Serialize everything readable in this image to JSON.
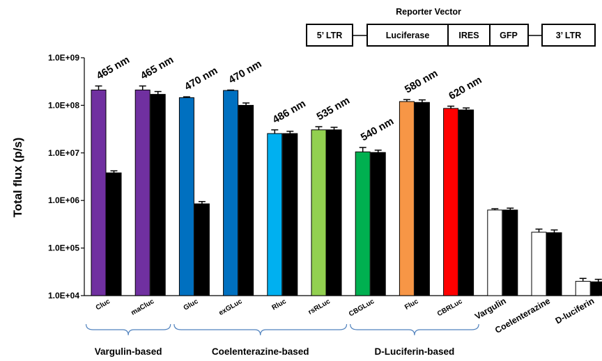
{
  "chart_data": {
    "type": "bar",
    "ylabel": "Total flux (p/s)",
    "xlabel": "",
    "scale": "log",
    "ylim": [
      10000,
      1000000000
    ],
    "yticks": [
      {
        "value": 10000,
        "label": "1.0E+04"
      },
      {
        "value": 100000,
        "label": "1.0E+05"
      },
      {
        "value": 1000000,
        "label": "1.0E+06"
      },
      {
        "value": 10000000,
        "label": "1.0E+07"
      },
      {
        "value": 100000000,
        "label": "1.0E+08"
      },
      {
        "value": 1000000000,
        "label": "1.0E+09"
      }
    ],
    "categories": [
      "Cluc",
      "maCluc",
      "Gluc",
      "exGLuc",
      "Rluc",
      "rsRLuc",
      "CBGLuc",
      "Fluc",
      "CBRLuc",
      "Vargulin",
      "Coelenterazine",
      "D-luciferin"
    ],
    "series": [
      {
        "values": [
          210000000,
          210000000,
          145000000,
          205000000,
          25500000,
          30500000,
          10500000,
          120000000,
          86000000,
          630000,
          215000,
          20000
        ],
        "errors": [
          45000000,
          45000000,
          6000000,
          4000000,
          5000000,
          5000000,
          2500000,
          12000000,
          10000000,
          40000,
          35000,
          3000
        ],
        "colors": [
          "#7030A0",
          "#7030A0",
          "#0070C0",
          "#0070C0",
          "#00B0F0",
          "#92D050",
          "#00B050",
          "#F79646",
          "#FF0000",
          "#FFFFFF",
          "#FFFFFF",
          "#FFFFFF"
        ]
      },
      {
        "values": [
          3800000,
          170000000,
          850000,
          100000000,
          25500000,
          30500000,
          10200000,
          115000000,
          80000000,
          630000,
          210000,
          19500
        ],
        "errors": [
          400000,
          25000000,
          100000,
          12000000,
          3000000,
          4000000,
          1200000,
          15000000,
          8000000,
          60000,
          30000,
          2500
        ],
        "color": "#000000"
      }
    ],
    "wavelength_labels": [
      "465 nm",
      "465 nm",
      "470 nm",
      "470 nm",
      "486 nm",
      "535 nm",
      "540 nm",
      "580 nm",
      "620 nm"
    ],
    "groups": [
      {
        "label": "Vargulin-based",
        "from": 0,
        "to": 1
      },
      {
        "label": "Coelenterazine-based",
        "from": 2,
        "to": 5
      },
      {
        "label": "D-Luciferin-based",
        "from": 6,
        "to": 8
      }
    ],
    "reporter_vector": {
      "title": "Reporter Vector",
      "segments": [
        "5’ LTR",
        "Luciferase",
        "IRES",
        "GFP",
        "3’ LTR"
      ]
    },
    "colors": {
      "bracket": "#4F81BD"
    }
  }
}
